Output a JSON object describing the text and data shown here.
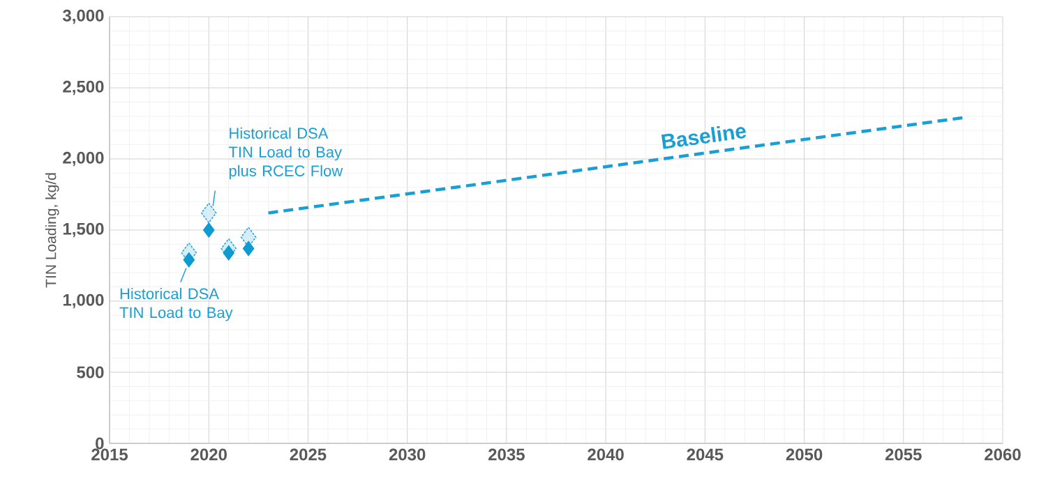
{
  "chart_data": {
    "type": "scatter",
    "ylabel": "TIN Loading, kg/d",
    "x": [
      2019,
      2020,
      2021,
      2022
    ],
    "series": [
      {
        "color": "#1a9fd4",
        "marker": "diamond",
        "line_style": "dashed",
        "values": [
          1340,
          1620,
          1370,
          1450
        ]
      },
      {
        "color": "#0e9bd0",
        "marker": "diamond",
        "values": [
          1290,
          1500,
          1340,
          1370
        ]
      },
      {
        "type": "line",
        "name": "Baseline",
        "color": "#1a9fd4",
        "marker": "none",
        "line_style": "dashed",
        "x": [
          2023,
          2058
        ],
        "values": [
          1620,
          2290
        ]
      }
    ],
    "annotations": [
      {
        "text": "Historical DSA TIN Load to Bay plus RCEC Flow",
        "x": 2020,
        "y": 1620
      },
      {
        "text": "Historical DSA TIN Load to Bay",
        "x": 2019,
        "y": 1290
      }
    ],
    "xlim": [
      2015,
      2060
    ],
    "xticks": [
      2015,
      2020,
      2025,
      2030,
      2035,
      2040,
      2045,
      2050,
      2055,
      2060
    ],
    "ylim": [
      0,
      3000
    ],
    "yticks": [
      {
        "value": 0,
        "label": "0"
      },
      {
        "value": 500,
        "label": "500"
      },
      {
        "value": 1000,
        "label": "1,000"
      },
      {
        "value": 1500,
        "label": "1,500"
      },
      {
        "value": 2000,
        "label": "2,000"
      },
      {
        "value": 2500,
        "label": "2,500"
      },
      {
        "value": 3000,
        "label": "3,000"
      }
    ],
    "grid": true
  }
}
